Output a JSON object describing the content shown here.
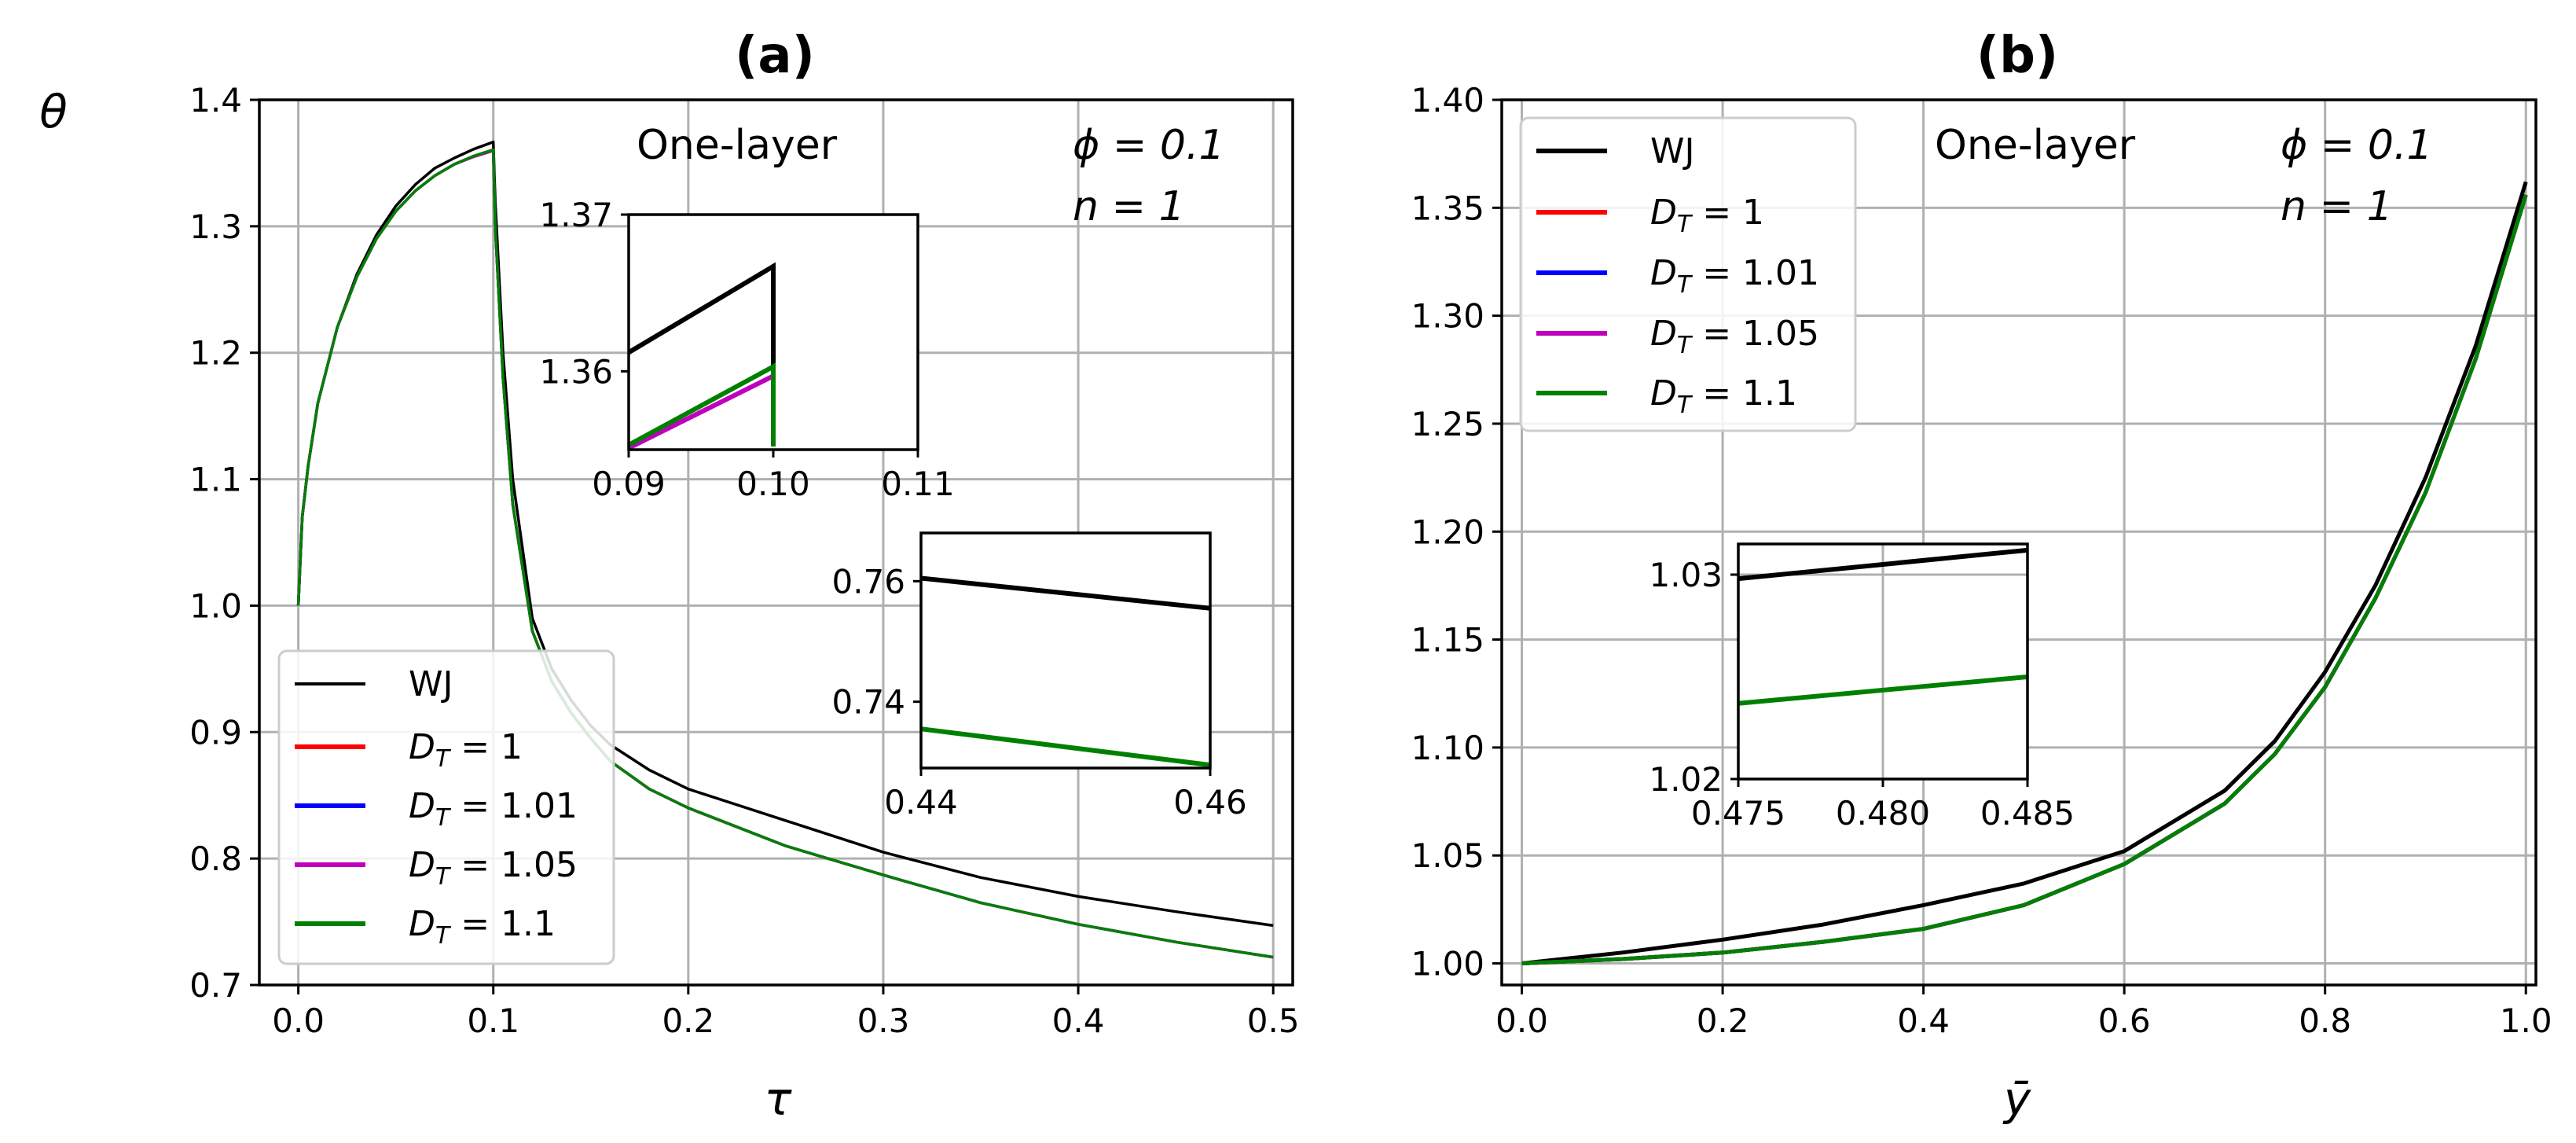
{
  "chart_data": [
    {
      "type": "line",
      "panel": "a",
      "title": "(a)",
      "xlabel": "τ",
      "ylabel": "θ",
      "xlim": [
        -0.02,
        0.51
      ],
      "ylim": [
        0.7,
        1.4
      ],
      "xticks": [
        0.0,
        0.1,
        0.2,
        0.3,
        0.4,
        0.5
      ],
      "yticks": [
        0.7,
        0.8,
        0.9,
        1.0,
        1.1,
        1.2,
        1.3,
        1.4
      ],
      "xtick_labels": [
        "0.0",
        "0.1",
        "0.2",
        "0.3",
        "0.4",
        "0.5"
      ],
      "ytick_labels": [
        "0.7",
        "0.8",
        "0.9",
        "1.0",
        "1.1",
        "1.2",
        "1.3",
        "1.4"
      ],
      "grid": true,
      "legend_position": "lower-left",
      "annotations": {
        "layer": "One-layer",
        "phi": "ϕ = 0.1",
        "n": "n = 1"
      },
      "series": [
        {
          "name": "WJ",
          "color": "#000000",
          "x": [
            0,
            0.002,
            0.005,
            0.01,
            0.02,
            0.03,
            0.04,
            0.05,
            0.06,
            0.07,
            0.08,
            0.09,
            0.1,
            0.101,
            0.105,
            0.11,
            0.12,
            0.13,
            0.14,
            0.15,
            0.16,
            0.18,
            0.2,
            0.25,
            0.3,
            0.35,
            0.4,
            0.45,
            0.5
          ],
          "y": [
            1.0,
            1.07,
            1.11,
            1.16,
            1.22,
            1.262,
            1.293,
            1.316,
            1.333,
            1.346,
            1.354,
            1.361,
            1.3667,
            1.32,
            1.2,
            1.1,
            0.99,
            0.95,
            0.925,
            0.905,
            0.89,
            0.87,
            0.855,
            0.83,
            0.805,
            0.785,
            0.77,
            0.758,
            0.747
          ]
        },
        {
          "name": "D_T = 1",
          "color": "#ff0000",
          "x": [
            0,
            0.002,
            0.005,
            0.01,
            0.02,
            0.03,
            0.04,
            0.05,
            0.06,
            0.07,
            0.08,
            0.09,
            0.1,
            0.101,
            0.105,
            0.11,
            0.12,
            0.13,
            0.14,
            0.15,
            0.16,
            0.18,
            0.2,
            0.25,
            0.3,
            0.35,
            0.4,
            0.45,
            0.5
          ],
          "y": [
            1.0,
            1.07,
            1.11,
            1.16,
            1.22,
            1.26,
            1.29,
            1.312,
            1.328,
            1.34,
            1.349,
            1.3555,
            1.3605,
            1.3,
            1.18,
            1.08,
            0.98,
            0.94,
            0.915,
            0.895,
            0.877,
            0.855,
            0.84,
            0.81,
            0.787,
            0.765,
            0.748,
            0.734,
            0.722
          ]
        },
        {
          "name": "D_T = 1.01",
          "color": "#0000ff",
          "x": [
            0,
            0.002,
            0.005,
            0.01,
            0.02,
            0.03,
            0.04,
            0.05,
            0.06,
            0.07,
            0.08,
            0.09,
            0.1,
            0.101,
            0.105,
            0.11,
            0.12,
            0.13,
            0.14,
            0.15,
            0.16,
            0.18,
            0.2,
            0.25,
            0.3,
            0.35,
            0.4,
            0.45,
            0.5
          ],
          "y": [
            1.0,
            1.07,
            1.11,
            1.16,
            1.22,
            1.26,
            1.29,
            1.312,
            1.328,
            1.34,
            1.349,
            1.3553,
            1.3601,
            1.3,
            1.18,
            1.08,
            0.98,
            0.94,
            0.915,
            0.895,
            0.877,
            0.855,
            0.84,
            0.81,
            0.787,
            0.765,
            0.748,
            0.734,
            0.722
          ]
        },
        {
          "name": "D_T = 1.05",
          "color": "#bf00bf",
          "x": [
            0,
            0.002,
            0.005,
            0.01,
            0.02,
            0.03,
            0.04,
            0.05,
            0.06,
            0.07,
            0.08,
            0.09,
            0.1,
            0.101,
            0.105,
            0.11,
            0.12,
            0.13,
            0.14,
            0.15,
            0.16,
            0.18,
            0.2,
            0.25,
            0.3,
            0.35,
            0.4,
            0.45,
            0.5
          ],
          "y": [
            1.0,
            1.07,
            1.11,
            1.16,
            1.22,
            1.26,
            1.29,
            1.312,
            1.328,
            1.34,
            1.349,
            1.355,
            1.3598,
            1.3,
            1.18,
            1.08,
            0.98,
            0.94,
            0.915,
            0.895,
            0.877,
            0.855,
            0.84,
            0.81,
            0.787,
            0.765,
            0.748,
            0.734,
            0.722
          ]
        },
        {
          "name": "D_T = 1.1",
          "color": "#008000",
          "x": [
            0,
            0.002,
            0.005,
            0.01,
            0.02,
            0.03,
            0.04,
            0.05,
            0.06,
            0.07,
            0.08,
            0.09,
            0.1,
            0.101,
            0.105,
            0.11,
            0.12,
            0.13,
            0.14,
            0.15,
            0.16,
            0.18,
            0.2,
            0.25,
            0.3,
            0.35,
            0.4,
            0.45,
            0.5
          ],
          "y": [
            1.0,
            1.07,
            1.11,
            1.16,
            1.22,
            1.26,
            1.29,
            1.312,
            1.328,
            1.34,
            1.349,
            1.3556,
            1.3606,
            1.3,
            1.18,
            1.08,
            0.98,
            0.94,
            0.915,
            0.895,
            0.877,
            0.855,
            0.84,
            0.81,
            0.787,
            0.765,
            0.748,
            0.734,
            0.722
          ]
        }
      ],
      "insets": [
        {
          "name": "inset-a1",
          "xlim": [
            0.09,
            0.11
          ],
          "ylim": [
            1.355,
            1.37
          ],
          "xticks": [
            0.09,
            0.1,
            0.11
          ],
          "xtick_labels": [
            "0.09",
            "0.10",
            "0.11"
          ],
          "yticks": [
            1.36,
            1.37
          ],
          "ytick_labels": [
            "1.36",
            "1.37"
          ],
          "grid": false,
          "series": [
            {
              "name": "WJ",
              "color": "#000000",
              "x": [
                0.09,
                0.1,
                0.1
              ],
              "y": [
                1.3612,
                1.3667,
                1.3552
              ]
            },
            {
              "name": "D_T = 1.05",
              "color": "#bf00bf",
              "x": [
                0.09,
                0.1
              ],
              "y": [
                1.3551,
                1.3597
              ]
            },
            {
              "name": "D_T = 1.1",
              "color": "#008000",
              "x": [
                0.09,
                0.1,
                0.1
              ],
              "y": [
                1.3553,
                1.3603,
                1.3552
              ]
            }
          ]
        },
        {
          "name": "inset-a2",
          "xlim": [
            0.44,
            0.46
          ],
          "ylim": [
            0.729,
            0.768
          ],
          "xticks": [
            0.44,
            0.46
          ],
          "xtick_labels": [
            "0.44",
            "0.46"
          ],
          "yticks": [
            0.74,
            0.76
          ],
          "ytick_labels": [
            "0.74",
            "0.76"
          ],
          "grid": false,
          "series": [
            {
              "name": "WJ",
              "color": "#000000",
              "x": [
                0.44,
                0.46
              ],
              "y": [
                0.7605,
                0.7555
              ]
            },
            {
              "name": "D_T = 1.1",
              "color": "#008000",
              "x": [
                0.44,
                0.46
              ],
              "y": [
                0.7355,
                0.7295
              ]
            }
          ]
        }
      ]
    },
    {
      "type": "line",
      "panel": "b",
      "title": "(b)",
      "xlabel": "ȳ",
      "ylabel": "",
      "xlim": [
        -0.02,
        1.01
      ],
      "ylim": [
        0.99,
        1.4
      ],
      "xticks": [
        0.0,
        0.2,
        0.4,
        0.6,
        0.8,
        1.0
      ],
      "yticks": [
        1.0,
        1.05,
        1.1,
        1.15,
        1.2,
        1.25,
        1.3,
        1.35,
        1.4
      ],
      "xtick_labels": [
        "0.0",
        "0.2",
        "0.4",
        "0.6",
        "0.8",
        "1.0"
      ],
      "ytick_labels": [
        "1.00",
        "1.05",
        "1.10",
        "1.15",
        "1.20",
        "1.25",
        "1.30",
        "1.35",
        "1.40"
      ],
      "grid": true,
      "legend_position": "upper-left",
      "annotations": {
        "layer": "One-layer",
        "phi": "ϕ = 0.1",
        "n": "n = 1"
      },
      "series": [
        {
          "name": "WJ",
          "color": "#000000",
          "x": [
            0,
            0.1,
            0.2,
            0.3,
            0.4,
            0.5,
            0.6,
            0.7,
            0.75,
            0.8,
            0.85,
            0.9,
            0.95,
            1.0
          ],
          "y": [
            1.0,
            1.005,
            1.011,
            1.018,
            1.027,
            1.037,
            1.052,
            1.08,
            1.103,
            1.135,
            1.175,
            1.225,
            1.286,
            1.362
          ]
        },
        {
          "name": "D_T = 1",
          "color": "#ff0000",
          "x": [
            0,
            0.1,
            0.2,
            0.3,
            0.4,
            0.5,
            0.6,
            0.7,
            0.75,
            0.8,
            0.85,
            0.9,
            0.95,
            1.0
          ],
          "y": [
            1.0,
            1.002,
            1.005,
            1.01,
            1.016,
            1.027,
            1.046,
            1.074,
            1.097,
            1.128,
            1.169,
            1.218,
            1.28,
            1.356
          ]
        },
        {
          "name": "D_T = 1.01",
          "color": "#0000ff",
          "x": [
            0,
            0.1,
            0.2,
            0.3,
            0.4,
            0.5,
            0.6,
            0.7,
            0.75,
            0.8,
            0.85,
            0.9,
            0.95,
            1.0
          ],
          "y": [
            1.0,
            1.002,
            1.005,
            1.01,
            1.016,
            1.027,
            1.046,
            1.074,
            1.097,
            1.128,
            1.169,
            1.218,
            1.28,
            1.356
          ]
        },
        {
          "name": "D_T = 1.05",
          "color": "#bf00bf",
          "x": [
            0,
            0.1,
            0.2,
            0.3,
            0.4,
            0.5,
            0.6,
            0.7,
            0.75,
            0.8,
            0.85,
            0.9,
            0.95,
            1.0
          ],
          "y": [
            1.0,
            1.002,
            1.005,
            1.01,
            1.016,
            1.027,
            1.046,
            1.074,
            1.097,
            1.128,
            1.169,
            1.218,
            1.28,
            1.356
          ]
        },
        {
          "name": "D_T = 1.1",
          "color": "#008000",
          "x": [
            0,
            0.1,
            0.2,
            0.3,
            0.4,
            0.5,
            0.6,
            0.7,
            0.75,
            0.8,
            0.85,
            0.9,
            0.95,
            1.0
          ],
          "y": [
            1.0,
            1.002,
            1.005,
            1.01,
            1.016,
            1.027,
            1.046,
            1.074,
            1.097,
            1.128,
            1.169,
            1.218,
            1.28,
            1.356
          ]
        }
      ],
      "insets": [
        {
          "name": "inset-b1",
          "xlim": [
            0.475,
            0.485
          ],
          "ylim": [
            1.02,
            1.0315
          ],
          "xticks": [
            0.475,
            0.48,
            0.485
          ],
          "xtick_labels": [
            "0.475",
            "0.480",
            "0.485"
          ],
          "yticks": [
            1.02,
            1.03
          ],
          "ytick_labels": [
            "1.02",
            "1.03"
          ],
          "grid": true,
          "series": [
            {
              "name": "WJ",
              "color": "#000000",
              "x": [
                0.475,
                0.485
              ],
              "y": [
                1.0298,
                1.0312
              ]
            },
            {
              "name": "D_T = 1.1",
              "color": "#008000",
              "x": [
                0.475,
                0.485
              ],
              "y": [
                1.0237,
                1.025
              ]
            }
          ]
        }
      ]
    }
  ],
  "legend_labels": {
    "wj": "WJ",
    "dt1": "D",
    "dt1_sub": "T",
    "dt1_val": " = 1",
    "dt101_val": " = 1.01",
    "dt105_val": " = 1.05",
    "dt11_val": " = 1.1"
  }
}
